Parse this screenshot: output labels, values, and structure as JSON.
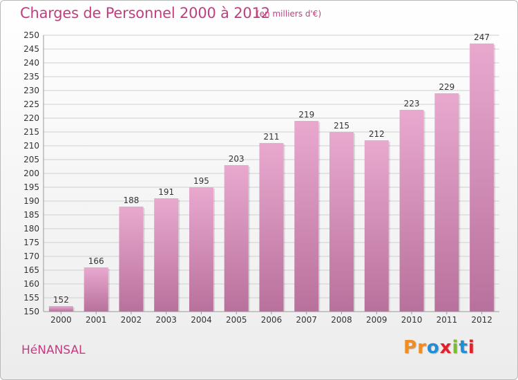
{
  "header": {
    "title": "Charges de Personnel 2000 à 2012",
    "subtitle": "(en milliers d'€)"
  },
  "footer": {
    "commune": "HéNANSAL",
    "logo": {
      "letters": [
        "P",
        "r",
        "o",
        "x",
        "i",
        "t",
        "i"
      ],
      "colors": [
        "#f28c1e",
        "#f28c1e",
        "#1d8fd6",
        "#e3202a",
        "#7dbb2b",
        "#1d8fd6",
        "#e3202a"
      ]
    }
  },
  "colors": {
    "accent": "#c23d80",
    "bar_top": "#e9a9cf",
    "bar_bottom": "#b8719c",
    "grid": "#cfcfcf",
    "axis_text": "#333333"
  },
  "chart_data": {
    "type": "bar",
    "title": "Charges de Personnel 2000 à 2012",
    "subtitle": "(en milliers d'€)",
    "categories": [
      "2000",
      "2001",
      "2002",
      "2003",
      "2004",
      "2005",
      "2006",
      "2007",
      "2008",
      "2009",
      "2010",
      "2011",
      "2012"
    ],
    "values": [
      152,
      166,
      188,
      191,
      195,
      203,
      211,
      219,
      215,
      212,
      223,
      229,
      247
    ],
    "ylim": [
      150,
      250
    ],
    "yticks": [
      150,
      155,
      160,
      165,
      170,
      175,
      180,
      185,
      190,
      195,
      200,
      205,
      210,
      215,
      220,
      225,
      230,
      235,
      240,
      245,
      250
    ],
    "grid": true,
    "xlabel": "",
    "ylabel": ""
  }
}
